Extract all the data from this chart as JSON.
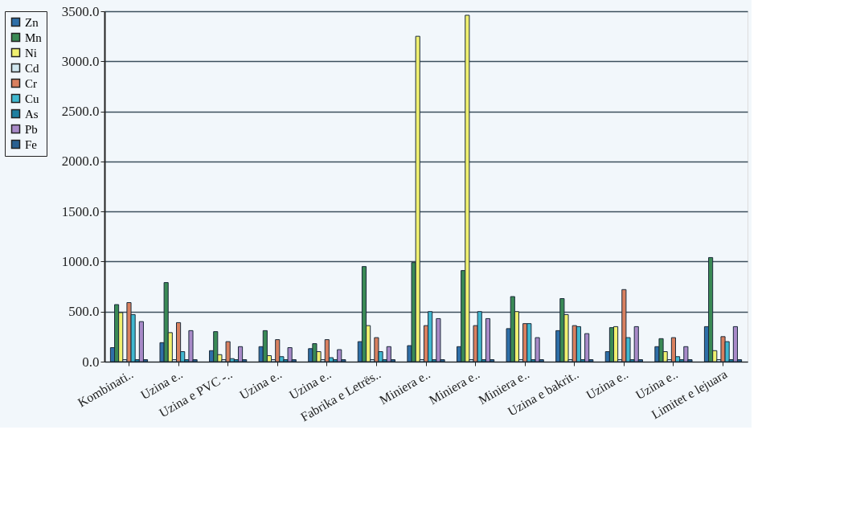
{
  "chart_data": {
    "type": "bar",
    "categories": [
      "Kombinati..",
      "Uzina e..",
      "Uzina e PVC -..",
      "Uzina e..",
      "Uzina e..",
      "Fabrika e Letrës..",
      "Miniera e..",
      "Miniera e..",
      "Miniera e..",
      "Uzina e bakrit..",
      "Uzina e..",
      "Uzina e..",
      "Limitet e lejuara"
    ],
    "series": [
      {
        "name": "Zn",
        "color": "#2e6fa8",
        "values": [
          140,
          190,
          110,
          150,
          130,
          200,
          160,
          150,
          330,
          310,
          100,
          150,
          350
        ]
      },
      {
        "name": "Mn",
        "color": "#3a8a55",
        "values": [
          570,
          790,
          300,
          310,
          180,
          950,
          990,
          910,
          650,
          630,
          340,
          230,
          1040
        ]
      },
      {
        "name": "Ni",
        "color": "#f0f070",
        "values": [
          490,
          290,
          70,
          60,
          100,
          360,
          3250,
          3460,
          500,
          470,
          350,
          100,
          110
        ]
      },
      {
        "name": "Cd",
        "color": "#cfe6ef",
        "values": [
          20,
          20,
          20,
          20,
          20,
          20,
          20,
          20,
          20,
          20,
          20,
          20,
          20
        ]
      },
      {
        "name": "Cr",
        "color": "#d9805f",
        "values": [
          590,
          390,
          200,
          220,
          220,
          240,
          360,
          360,
          380,
          360,
          720,
          240,
          250
        ]
      },
      {
        "name": "Cu",
        "color": "#40b8d0",
        "values": [
          470,
          100,
          30,
          50,
          40,
          100,
          500,
          500,
          380,
          350,
          240,
          50,
          200
        ]
      },
      {
        "name": "As",
        "color": "#1e7fa0",
        "values": [
          20,
          20,
          20,
          20,
          20,
          20,
          20,
          20,
          20,
          20,
          20,
          20,
          20
        ]
      },
      {
        "name": "Pb",
        "color": "#a88ac8",
        "values": [
          400,
          310,
          150,
          140,
          120,
          150,
          430,
          430,
          240,
          280,
          350,
          150,
          350
        ]
      },
      {
        "name": "Fe",
        "color": "#2a6090",
        "values": [
          20,
          20,
          20,
          20,
          20,
          20,
          20,
          20,
          20,
          20,
          20,
          20,
          20
        ]
      }
    ],
    "ylim": [
      0,
      3500
    ],
    "yticks": [
      {
        "value": 0,
        "label": "0.0"
      },
      {
        "value": 500,
        "label": "500.0"
      },
      {
        "value": 1000,
        "label": "1000.0"
      },
      {
        "value": 1500,
        "label": "1500.0"
      },
      {
        "value": 2000,
        "label": "2000.0"
      },
      {
        "value": 2500,
        "label": "2500.0"
      },
      {
        "value": 3000,
        "label": "3000.0"
      },
      {
        "value": 3500,
        "label": "3500.0"
      }
    ],
    "grid": "y",
    "legend": "left"
  }
}
